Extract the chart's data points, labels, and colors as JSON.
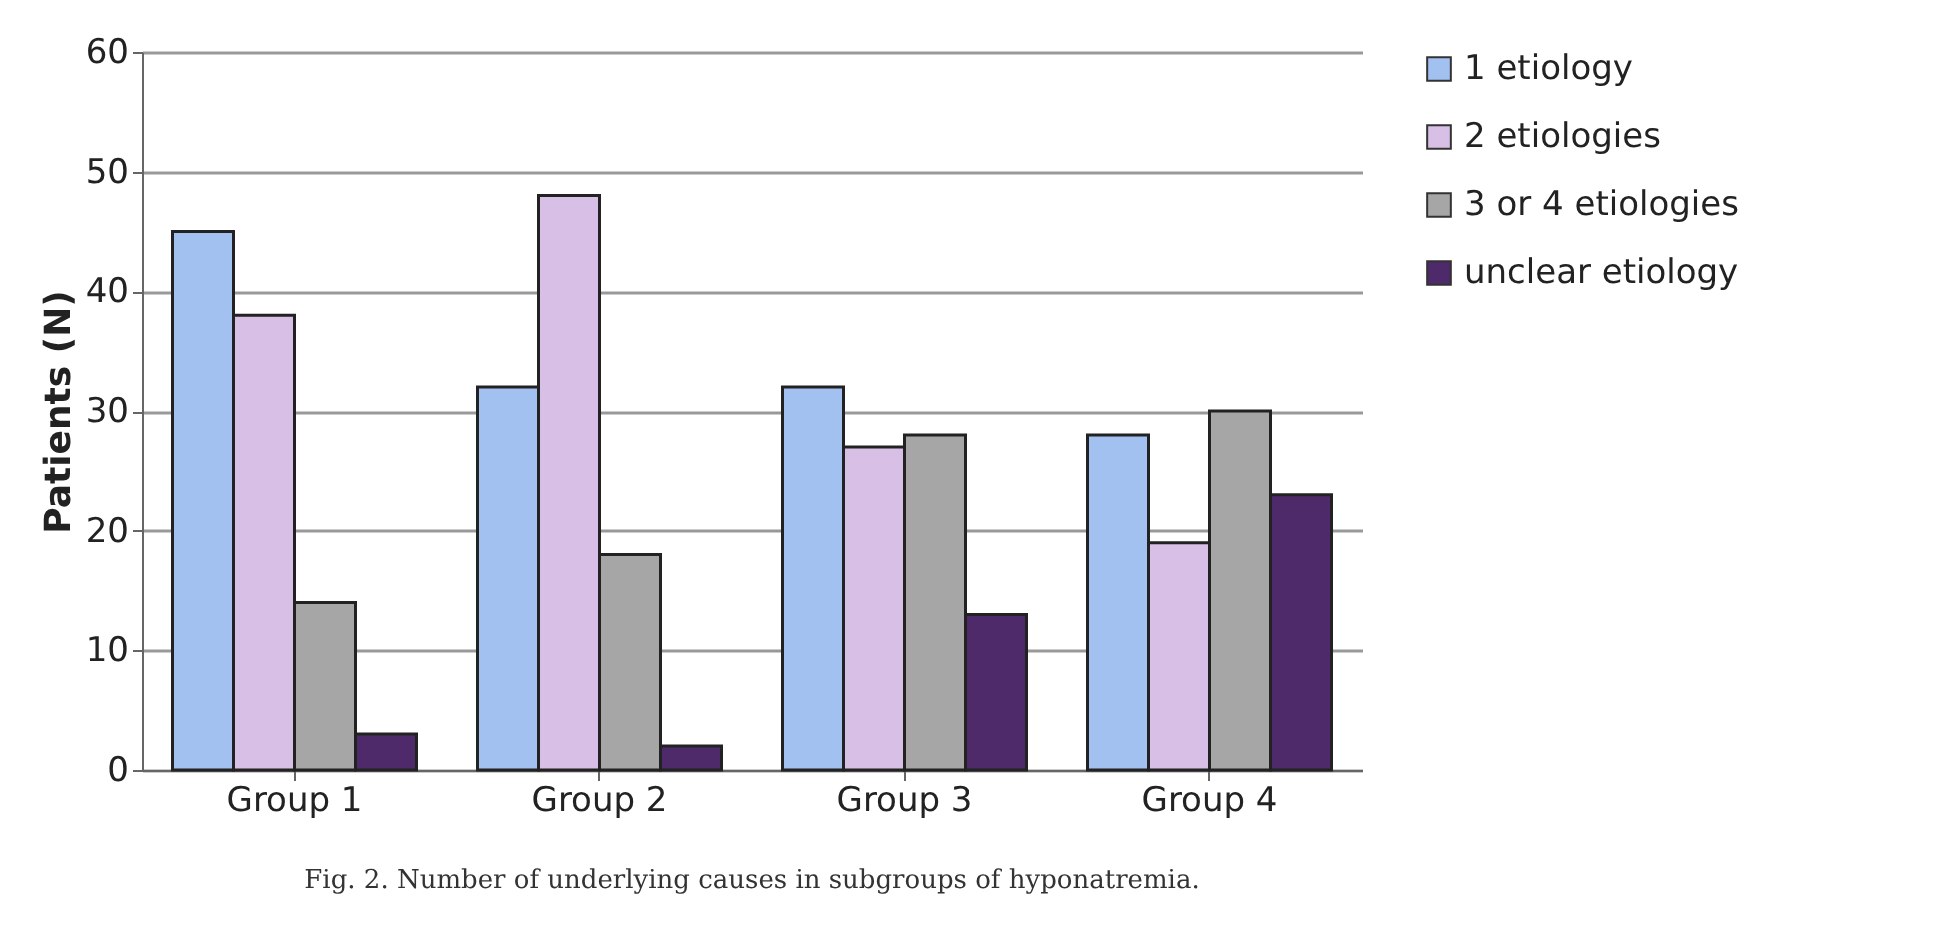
{
  "chart_data": {
    "type": "bar",
    "ylabel": "Patients (N)",
    "categories": [
      "Group 1",
      "Group 2",
      "Group 3",
      "Group 4"
    ],
    "series": [
      {
        "name": "1 etiology",
        "color": "#a3c1f0",
        "values": [
          45,
          32,
          32,
          28
        ]
      },
      {
        "name": "2 etiologies",
        "color": "#d8bfe6",
        "values": [
          38,
          48,
          27,
          19
        ]
      },
      {
        "name": "3 or 4 etiologies",
        "color": "#a6a6a6",
        "values": [
          14,
          18,
          28,
          30
        ]
      },
      {
        "name": "unclear etiology",
        "color": "#4e2a6b",
        "values": [
          3,
          2,
          13,
          23
        ]
      }
    ],
    "ylim": [
      0,
      60
    ],
    "yticks": [
      0,
      10,
      20,
      30,
      40,
      50,
      60
    ],
    "grid": "y",
    "legend": "right",
    "annotations": [
      "Fig. 2. Number of underlying causes in subgroups of hyponatremia."
    ]
  }
}
